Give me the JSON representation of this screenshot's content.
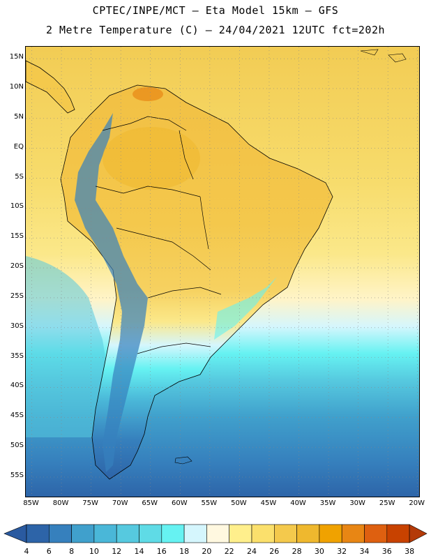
{
  "header": {
    "line1": "CPTEC/INPE/MCT –  Eta Model 15km – GFS",
    "line2": "2 Metre Temperature (C) – 24/04/2021 12UTC fct=202h"
  },
  "axes": {
    "lat_labels": [
      "15N",
      "10N",
      "5N",
      "EQ",
      "5S",
      "10S",
      "15S",
      "20S",
      "25S",
      "30S",
      "35S",
      "40S",
      "45S",
      "50S",
      "55S"
    ],
    "lon_labels": [
      "85W",
      "80W",
      "75W",
      "70W",
      "65W",
      "60W",
      "55W",
      "50W",
      "45W",
      "40W",
      "35W",
      "30W",
      "25W",
      "20W"
    ],
    "lat_range": [
      17,
      -58.5
    ],
    "lon_range": [
      -86,
      -19.5
    ],
    "grid": "dotted"
  },
  "legend": {
    "labels": [
      "4",
      "6",
      "8",
      "10",
      "12",
      "14",
      "16",
      "18",
      "20",
      "22",
      "24",
      "26",
      "28",
      "30",
      "32",
      "34",
      "36",
      "38"
    ],
    "colors": [
      "#2d64a8",
      "#3680bd",
      "#40a0cc",
      "#4ab7d8",
      "#56c9df",
      "#5fdbe6",
      "#66f2f2",
      "#d5f6fd",
      "#fff8e0",
      "#ffef8c",
      "#fbe06c",
      "#f4c94c",
      "#efb82e",
      "#f0a200",
      "#e88614",
      "#de6010",
      "#c84200"
    ],
    "under_color": "#2a5aa0",
    "over_color": "#b43a08"
  }
}
